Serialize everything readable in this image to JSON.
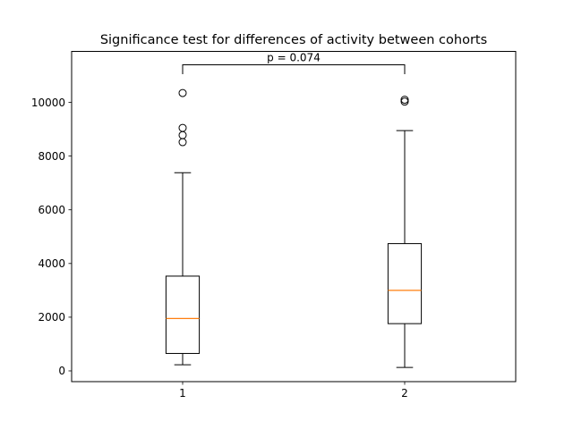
{
  "chart_data": {
    "type": "boxplot",
    "title": "Significance test for differences of activity between cohorts",
    "xlabel": "",
    "ylabel": "",
    "categories": [
      "1",
      "2"
    ],
    "ylim": [
      -400,
      11900
    ],
    "yticks": [
      0,
      2000,
      4000,
      6000,
      8000,
      10000
    ],
    "grid": false,
    "boxes": [
      {
        "category": "1",
        "whisker_low": 230,
        "q1": 650,
        "median": 1950,
        "q3": 3530,
        "whisker_high": 7380,
        "fliers": [
          8520,
          8780,
          9050,
          10350
        ]
      },
      {
        "category": "2",
        "whisker_low": 130,
        "q1": 1760,
        "median": 3000,
        "q3": 4740,
        "whisker_high": 8950,
        "fliers": [
          10030,
          10100
        ]
      }
    ],
    "annotation": {
      "text": "p = 0.074",
      "level": 11400,
      "drop": 11050,
      "between": [
        "1",
        "2"
      ]
    },
    "colors": {
      "box": "#000000",
      "median": "#ff7f0e",
      "flier_edge": "#000000"
    }
  }
}
